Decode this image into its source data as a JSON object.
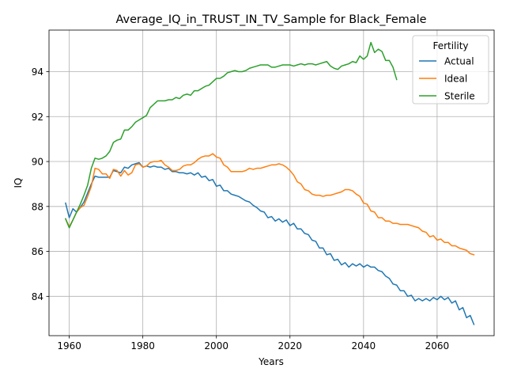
{
  "chart_data": {
    "type": "line",
    "title": "Average_IQ_in_TRUST_IN_TV_Sample for Black_Female",
    "xlabel": "Years",
    "ylabel": "IQ",
    "xlim": [
      1954.5,
      2075.5
    ],
    "ylim": [
      82.25,
      95.85
    ],
    "xticks": [
      1960,
      1980,
      2000,
      2020,
      2040,
      2060
    ],
    "yticks": [
      84,
      86,
      88,
      90,
      92,
      94
    ],
    "grid": true,
    "legend": {
      "title": "Fertility",
      "placement": "top-right"
    },
    "series": [
      {
        "name": "Actual",
        "color": "#1f77b4",
        "x": [
          1959,
          1960,
          1961,
          1962,
          1963,
          1964,
          1965,
          1966,
          1967,
          1968,
          1969,
          1970,
          1971,
          1972,
          1973,
          1974,
          1975,
          1976,
          1977,
          1978,
          1979,
          1980,
          1981,
          1982,
          1983,
          1984,
          1985,
          1986,
          1987,
          1988,
          1989,
          1990,
          1991,
          1992,
          1993,
          1994,
          1995,
          1996,
          1997,
          1998,
          1999,
          2000,
          2001,
          2002,
          2003,
          2004,
          2005,
          2006,
          2007,
          2008,
          2009,
          2010,
          2011,
          2012,
          2013,
          2014,
          2015,
          2016,
          2017,
          2018,
          2019,
          2020,
          2021,
          2022,
          2023,
          2024,
          2025,
          2026,
          2027,
          2028,
          2029,
          2030,
          2031,
          2032,
          2033,
          2034,
          2035,
          2036,
          2037,
          2038,
          2039,
          2040,
          2041,
          2042,
          2043,
          2044,
          2045,
          2046,
          2047,
          2048,
          2049,
          2050,
          2051,
          2052,
          2053,
          2054,
          2055,
          2056,
          2057,
          2058,
          2059,
          2060,
          2061,
          2062,
          2063,
          2064,
          2065,
          2066,
          2067,
          2068,
          2069,
          2070
        ],
        "values": [
          88.15,
          87.5,
          87.9,
          87.75,
          87.95,
          88.2,
          88.6,
          89.0,
          89.35,
          89.3,
          89.3,
          89.3,
          89.3,
          89.6,
          89.55,
          89.5,
          89.75,
          89.7,
          89.85,
          89.9,
          89.95,
          89.75,
          89.8,
          89.75,
          89.8,
          89.75,
          89.75,
          89.65,
          89.7,
          89.55,
          89.55,
          89.5,
          89.5,
          89.45,
          89.5,
          89.4,
          89.5,
          89.3,
          89.35,
          89.15,
          89.2,
          88.9,
          88.95,
          88.7,
          88.7,
          88.55,
          88.5,
          88.45,
          88.35,
          88.25,
          88.2,
          88.05,
          87.95,
          87.8,
          87.75,
          87.5,
          87.55,
          87.35,
          87.45,
          87.3,
          87.4,
          87.15,
          87.25,
          87.0,
          87.0,
          86.8,
          86.75,
          86.5,
          86.45,
          86.15,
          86.15,
          85.85,
          85.9,
          85.6,
          85.65,
          85.4,
          85.5,
          85.3,
          85.45,
          85.35,
          85.45,
          85.3,
          85.4,
          85.3,
          85.3,
          85.15,
          85.1,
          84.9,
          84.8,
          84.55,
          84.5,
          84.25,
          84.25,
          84.0,
          84.05,
          83.8,
          83.9,
          83.8,
          83.9,
          83.8,
          83.95,
          83.85,
          84.0,
          83.85,
          83.95,
          83.7,
          83.8,
          83.4,
          83.5,
          83.05,
          83.15,
          82.75
        ]
      },
      {
        "name": "Ideal",
        "color": "#ff7f0e",
        "x": [
          1959,
          1960,
          1961,
          1962,
          1963,
          1964,
          1965,
          1966,
          1967,
          1968,
          1969,
          1970,
          1971,
          1972,
          1973,
          1974,
          1975,
          1976,
          1977,
          1978,
          1979,
          1980,
          1981,
          1982,
          1983,
          1984,
          1985,
          1986,
          1987,
          1988,
          1989,
          1990,
          1991,
          1992,
          1993,
          1994,
          1995,
          1996,
          1997,
          1998,
          1999,
          2000,
          2001,
          2002,
          2003,
          2004,
          2005,
          2006,
          2007,
          2008,
          2009,
          2010,
          2011,
          2012,
          2013,
          2014,
          2015,
          2016,
          2017,
          2018,
          2019,
          2020,
          2021,
          2022,
          2023,
          2024,
          2025,
          2026,
          2027,
          2028,
          2029,
          2030,
          2031,
          2032,
          2033,
          2034,
          2035,
          2036,
          2037,
          2038,
          2039,
          2040,
          2041,
          2042,
          2043,
          2044,
          2045,
          2046,
          2047,
          2048,
          2049,
          2050,
          2051,
          2052,
          2053,
          2054,
          2055,
          2056,
          2057,
          2058,
          2059,
          2060,
          2061,
          2062,
          2063,
          2064,
          2065,
          2066,
          2067,
          2068,
          2069,
          2070
        ],
        "values": [
          87.45,
          87.1,
          87.4,
          87.75,
          87.95,
          88.05,
          88.45,
          88.9,
          89.7,
          89.65,
          89.45,
          89.45,
          89.25,
          89.65,
          89.6,
          89.35,
          89.6,
          89.4,
          89.5,
          89.85,
          89.9,
          89.75,
          89.8,
          89.95,
          90.0,
          90.0,
          90.05,
          89.85,
          89.75,
          89.6,
          89.6,
          89.65,
          89.8,
          89.85,
          89.85,
          89.95,
          90.1,
          90.2,
          90.25,
          90.25,
          90.35,
          90.2,
          90.15,
          89.85,
          89.75,
          89.55,
          89.55,
          89.55,
          89.55,
          89.6,
          89.7,
          89.65,
          89.7,
          89.7,
          89.75,
          89.8,
          89.85,
          89.85,
          89.9,
          89.85,
          89.75,
          89.6,
          89.4,
          89.1,
          89.0,
          88.75,
          88.7,
          88.55,
          88.5,
          88.5,
          88.45,
          88.5,
          88.5,
          88.55,
          88.6,
          88.65,
          88.75,
          88.75,
          88.7,
          88.55,
          88.45,
          88.15,
          88.1,
          87.8,
          87.75,
          87.5,
          87.5,
          87.35,
          87.35,
          87.25,
          87.25,
          87.2,
          87.2,
          87.2,
          87.15,
          87.1,
          87.05,
          86.9,
          86.85,
          86.65,
          86.7,
          86.5,
          86.55,
          86.4,
          86.4,
          86.25,
          86.25,
          86.15,
          86.1,
          86.05,
          85.9,
          85.85
        ]
      },
      {
        "name": "Sterile",
        "color": "#2ca02c",
        "x": [
          1959,
          1960,
          1961,
          1962,
          1963,
          1964,
          1965,
          1966,
          1967,
          1968,
          1969,
          1970,
          1971,
          1972,
          1973,
          1974,
          1975,
          1976,
          1977,
          1978,
          1979,
          1980,
          1981,
          1982,
          1983,
          1984,
          1985,
          1986,
          1987,
          1988,
          1989,
          1990,
          1991,
          1992,
          1993,
          1994,
          1995,
          1996,
          1997,
          1998,
          1999,
          2000,
          2001,
          2002,
          2003,
          2004,
          2005,
          2006,
          2007,
          2008,
          2009,
          2010,
          2011,
          2012,
          2013,
          2014,
          2015,
          2016,
          2017,
          2018,
          2019,
          2020,
          2021,
          2022,
          2023,
          2024,
          2025,
          2026,
          2027,
          2028,
          2029,
          2030,
          2031,
          2032,
          2033,
          2034,
          2035,
          2036,
          2037,
          2038,
          2039,
          2040,
          2041,
          2042,
          2043,
          2044,
          2045,
          2046,
          2047,
          2048,
          2049
        ],
        "values": [
          87.45,
          87.05,
          87.4,
          87.75,
          88.1,
          88.5,
          88.95,
          89.7,
          90.15,
          90.1,
          90.15,
          90.25,
          90.45,
          90.85,
          90.95,
          91.0,
          91.4,
          91.4,
          91.55,
          91.75,
          91.85,
          91.95,
          92.05,
          92.4,
          92.55,
          92.7,
          92.7,
          92.7,
          92.75,
          92.75,
          92.85,
          92.8,
          92.95,
          93.0,
          92.95,
          93.15,
          93.15,
          93.25,
          93.35,
          93.4,
          93.55,
          93.7,
          93.7,
          93.8,
          93.95,
          94.0,
          94.05,
          94.0,
          94.0,
          94.05,
          94.15,
          94.2,
          94.25,
          94.3,
          94.3,
          94.3,
          94.2,
          94.2,
          94.25,
          94.3,
          94.3,
          94.3,
          94.25,
          94.3,
          94.35,
          94.3,
          94.35,
          94.35,
          94.3,
          94.35,
          94.4,
          94.45,
          94.25,
          94.15,
          94.1,
          94.25,
          94.3,
          94.35,
          94.45,
          94.4,
          94.7,
          94.55,
          94.7,
          95.3,
          94.85,
          95.0,
          94.9,
          94.5,
          94.5,
          94.2,
          93.65
        ]
      }
    ]
  }
}
